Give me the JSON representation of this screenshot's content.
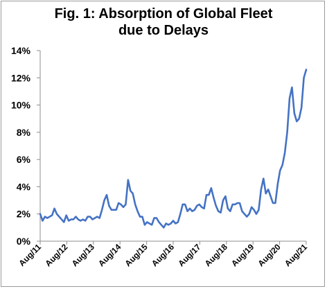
{
  "chart_data": {
    "type": "line",
    "title_lines": [
      "Fig. 1: Absorption of Global Fleet",
      "due to Delays"
    ],
    "xlabel": "",
    "ylabel": "",
    "y_unit": "%",
    "ylim": [
      0,
      14
    ],
    "y_ticks": [
      "0%",
      "2%",
      "4%",
      "6%",
      "8%",
      "10%",
      "12%",
      "14%"
    ],
    "x_ticks": [
      "Aug/11",
      "Aug/12",
      "Aug/13",
      "Aug/14",
      "Aug/15",
      "Aug/16",
      "Aug/17",
      "Aug/18",
      "Aug/19",
      "Aug/20",
      "Aug/21"
    ],
    "grid": false,
    "legend": "none",
    "line_color": "#4472c4",
    "series": [
      {
        "values": [
          2.0,
          1.5,
          1.8,
          1.7,
          1.8,
          1.9,
          2.4,
          2.0,
          1.8,
          1.6,
          1.4,
          1.9,
          1.5,
          1.6,
          1.6,
          1.8,
          1.6,
          1.5,
          1.6,
          1.5,
          1.8,
          1.8,
          1.6,
          1.7,
          1.8,
          1.7,
          2.3,
          3.0,
          3.4,
          2.6,
          2.3,
          2.3,
          2.3,
          2.8,
          2.7,
          2.5,
          2.7,
          4.5,
          3.7,
          3.5,
          2.7,
          2.2,
          1.8,
          1.8,
          1.2,
          1.4,
          1.3,
          1.2,
          1.7,
          1.7,
          1.4,
          1.2,
          1.0,
          1.3,
          1.2,
          1.3,
          1.5,
          1.3,
          1.4,
          2.0,
          2.7,
          2.7,
          2.2,
          2.4,
          2.2,
          2.3,
          2.6,
          2.7,
          2.5,
          2.4,
          3.4,
          3.4,
          3.9,
          3.2,
          2.6,
          2.2,
          2.1,
          3.0,
          3.3,
          2.4,
          2.2,
          2.7,
          2.7,
          2.8,
          2.8,
          2.2,
          2.0,
          1.8,
          2.0,
          2.5,
          2.3,
          2.0,
          2.3,
          3.8,
          4.6,
          3.5,
          3.8,
          3.3,
          2.8,
          2.8,
          4.2,
          5.2,
          5.6,
          6.5,
          8.0,
          10.5,
          11.3,
          9.4,
          8.8,
          9.0,
          9.8,
          12.0,
          12.6
        ]
      }
    ]
  }
}
